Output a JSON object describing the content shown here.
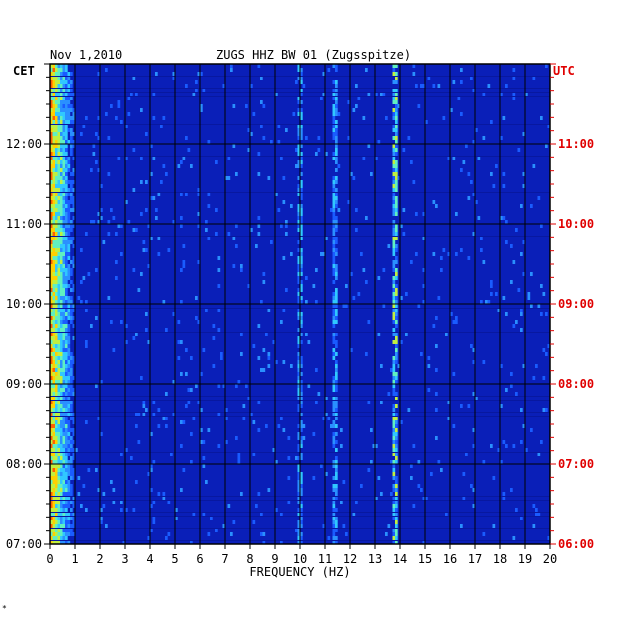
{
  "header": {
    "date": "Nov 1,2010",
    "station": "ZUGS HHZ BW 01 (Zugsspitze)"
  },
  "timezones": {
    "left": "CET",
    "right": "UTC"
  },
  "colors": {
    "background": "#0a1fb8",
    "grid": "#000000",
    "left_labels": "#000000",
    "right_labels": "#e00000"
  },
  "chart_data": {
    "type": "heatmap",
    "title": "ZUGS HHZ BW 01 (Zugsspitze)",
    "xlabel": "FREQUENCY (HZ)",
    "ylabel_left": "CET",
    "ylabel_right": "UTC",
    "xlim": [
      0,
      20
    ],
    "x_ticks": [
      "0",
      "1",
      "2",
      "3",
      "4",
      "5",
      "6",
      "7",
      "8",
      "9",
      "10",
      "11",
      "12",
      "13",
      "14",
      "15",
      "16",
      "17",
      "18",
      "19",
      "20"
    ],
    "y_ticks_left": [
      "07:00",
      "08:00",
      "09:00",
      "10:00",
      "11:00",
      "12:00"
    ],
    "y_ticks_right": [
      "06:00",
      "07:00",
      "08:00",
      "09:00",
      "10:00",
      "11:00"
    ],
    "time_range_cet": [
      "07:00",
      "13:00"
    ],
    "energy_bands_hz": [
      {
        "freq": 0.3,
        "intensity": "very high"
      },
      {
        "freq": 10.0,
        "intensity": "medium"
      },
      {
        "freq": 11.4,
        "intensity": "medium"
      },
      {
        "freq": 13.8,
        "intensity": "high"
      }
    ],
    "grid": true
  }
}
